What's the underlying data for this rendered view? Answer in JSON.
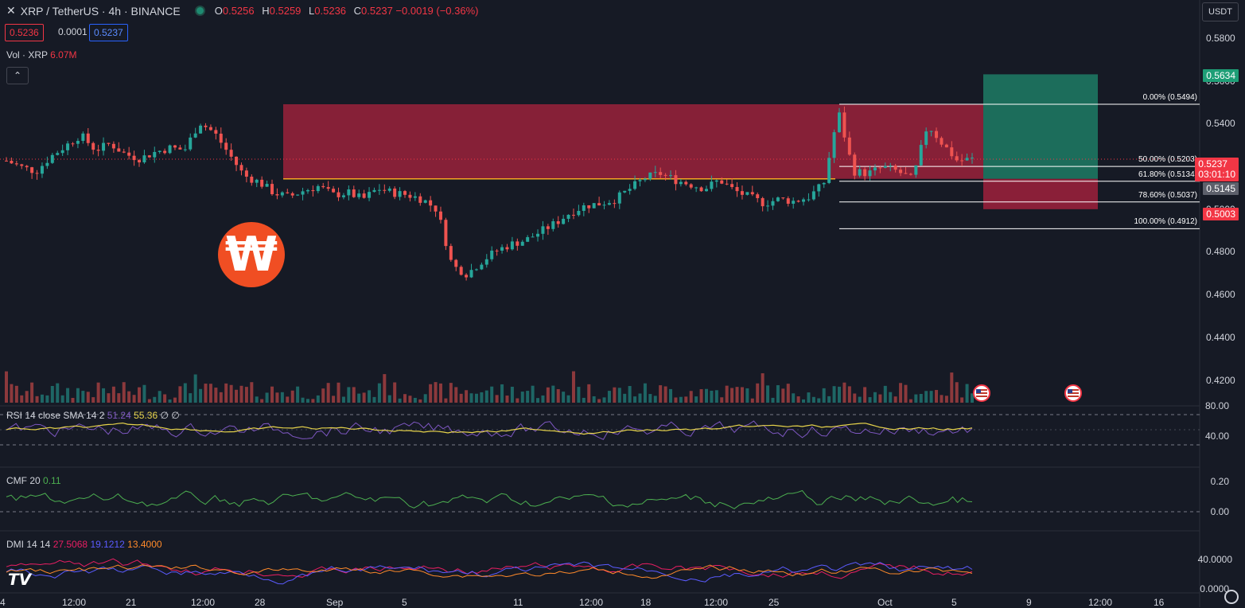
{
  "header": {
    "symbol": "XRP / TetherUS · 4h · BINANCE",
    "open_k": "O",
    "open_v": "0.5256",
    "high_k": "H",
    "high_v": "0.5259",
    "low_k": "L",
    "low_v": "0.5236",
    "close_k": "C",
    "close_v": "0.5237 −0.0019 (−0.36%)",
    "sell_price": "0.5236",
    "spread": "0.0001",
    "buy_price": "0.5237",
    "volume_label": "Vol · XRP",
    "volume_value": "6.07M",
    "collapse_icon": "chevron-up-icon"
  },
  "currency_button": "USDT",
  "price_axis": {
    "labels": [
      "0.5800",
      "0.5600",
      "0.5400",
      "0.5200",
      "0.5000",
      "0.4800",
      "0.4600",
      "0.4400",
      "0.4200"
    ]
  },
  "price_tags": {
    "target": {
      "label": "0.5634",
      "color": "#1e9e76"
    },
    "last": {
      "label": "0.5237",
      "countdown": "03:01:10",
      "color": "#f23645"
    },
    "entry": {
      "label": "0.5145",
      "color": "#5d606b"
    },
    "stop": {
      "label": "0.5003",
      "color": "#f23645"
    }
  },
  "fib_levels": [
    {
      "label": "0.00% (0.5494)",
      "price": 0.5494
    },
    {
      "label": "50.00% (0.5203)",
      "price": 0.5203
    },
    {
      "label": "61.80% (0.5134)",
      "price": 0.5134
    },
    {
      "label": "78.60% (0.5037)",
      "price": 0.5037
    },
    {
      "label": "100.00% (0.4912)",
      "price": 0.4912
    }
  ],
  "time_axis": {
    "labels": [
      "4",
      "12:00",
      "21",
      "12:00",
      "28",
      "Sep",
      "5",
      "11",
      "12:00",
      "18",
      "12:00",
      "25",
      "Oct",
      "5",
      "9",
      "12:00",
      "16"
    ]
  },
  "rsi": {
    "label": "RSI 14 close SMA 14 2",
    "value1": "51.24",
    "value2": "55.36",
    "extra": "∅ ∅",
    "axis": [
      "80.00",
      "40.00"
    ]
  },
  "cmf": {
    "label": "CMF 20",
    "value": "0.11",
    "axis": [
      "0.20",
      "0.00"
    ]
  },
  "dmi": {
    "label": "DMI 14 14",
    "plus": "27.5068",
    "minus": "19.1212",
    "adx": "13.4000",
    "axis": [
      "40.0000",
      "0.0000"
    ]
  },
  "colors": {
    "up": "#26a69a",
    "down": "#ef5350",
    "zone": "#b2223f",
    "target_zone": "#1f8a6d",
    "stop_zone": "#b2223f",
    "rsi_line": "#7e57c2",
    "rsi_sma": "#e6d34b",
    "cmf_line": "#4caf50",
    "dmi_plus": "#e91e63",
    "dmi_minus": "#5b5bff",
    "dmi_adx": "#ff8a2a"
  },
  "logo_text": "₩",
  "chart_data": {
    "type": "candlestick",
    "title": "XRP / TetherUS · 4h · BINANCE",
    "ylim": [
      0.415,
      0.587
    ],
    "close_path": [
      0.523,
      0.52,
      0.518,
      0.525,
      0.53,
      0.535,
      0.528,
      0.531,
      0.526,
      0.524,
      0.527,
      0.529,
      0.528,
      0.541,
      0.536,
      0.526,
      0.516,
      0.513,
      0.508,
      0.506,
      0.509,
      0.511,
      0.507,
      0.508,
      0.505,
      0.51,
      0.508,
      0.507,
      0.505,
      0.5,
      0.474,
      0.47,
      0.476,
      0.481,
      0.484,
      0.486,
      0.49,
      0.494,
      0.499,
      0.502,
      0.503,
      0.505,
      0.51,
      0.515,
      0.517,
      0.514,
      0.512,
      0.51,
      0.514,
      0.509,
      0.506,
      0.503,
      0.505,
      0.504,
      0.506,
      0.512,
      0.546,
      0.518,
      0.517,
      0.52,
      0.518,
      0.514,
      0.54,
      0.531,
      0.523,
      0.5237
    ]
  }
}
